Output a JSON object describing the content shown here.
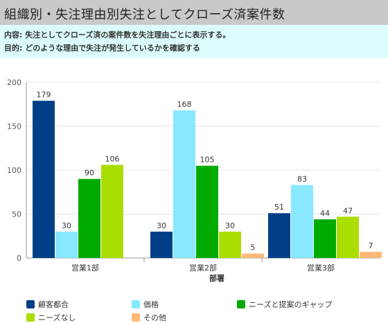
{
  "title": "組織別・失注理由別失注としてクローズ済案件数",
  "info": {
    "content_label": "内容:",
    "content_text": "失注としてクローズ済の案件数を失注理由ごとに表示する。",
    "purpose_label": "目的:",
    "purpose_text": "どのような理由で失注が発生しているかを確認する"
  },
  "chart_data": {
    "type": "bar",
    "xlabel": "部署",
    "ylabel": "",
    "ylim": [
      0,
      200
    ],
    "yticks": [
      0,
      50,
      100,
      150,
      200
    ],
    "grid": true,
    "legend_position": "bottom",
    "categories": [
      "営業1部",
      "営業2部",
      "営業3部"
    ],
    "series": [
      {
        "name": "顧客都合",
        "color": "#003f87",
        "values": [
          179,
          30,
          51
        ]
      },
      {
        "name": "価格",
        "color": "#87e8ff",
        "values": [
          30,
          168,
          83
        ]
      },
      {
        "name": "ニーズと提案のギャップ",
        "color": "#00aa00",
        "values": [
          90,
          105,
          44
        ]
      },
      {
        "name": "ニーズなし",
        "color": "#aadd00",
        "values": [
          106,
          30,
          47
        ]
      },
      {
        "name": "その他",
        "color": "#ffb877",
        "values": [
          null,
          5,
          7
        ]
      }
    ]
  }
}
